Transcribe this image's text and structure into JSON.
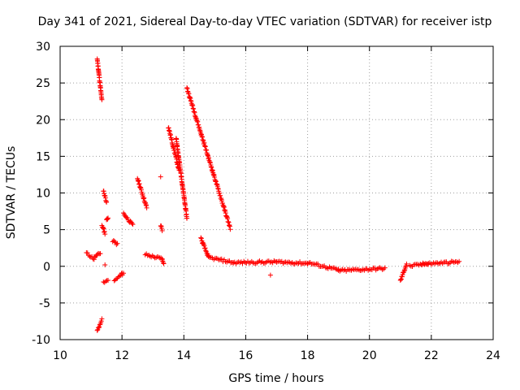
{
  "chart_data": {
    "type": "scatter",
    "title": "Day 341 of 2021, Sidereal Day-to-day VTEC variation (SDTVAR) for receiver istp",
    "xlabel": "GPS time / hours",
    "ylabel": "SDTVAR / TECUs",
    "xlim": [
      10,
      24
    ],
    "ylim": [
      -10,
      30
    ],
    "x_ticks": [
      "10",
      "12",
      "14",
      "16",
      "18",
      "20",
      "22",
      "24"
    ],
    "y_ticks": [
      "-10",
      "-5",
      "0",
      "5",
      "10",
      "15",
      "20",
      "25",
      "30"
    ],
    "grid": true,
    "marker": "+",
    "series_color": "#ff0000",
    "segments": [
      {
        "x": [
          10.85,
          11.1
        ],
        "y": [
          1.8,
          1.0
        ]
      },
      {
        "x": [
          11.1,
          11.3
        ],
        "y": [
          1.2,
          1.8
        ]
      },
      {
        "x": [
          11.2,
          11.35
        ],
        "y": [
          28.3,
          22.6
        ]
      },
      {
        "x": [
          11.2,
          11.35
        ],
        "y": [
          -8.8,
          -7.3
        ]
      },
      {
        "x": [
          11.35,
          11.45
        ],
        "y": [
          5.6,
          4.5
        ]
      },
      {
        "x": [
          11.4,
          11.5
        ],
        "y": [
          10.3,
          8.8
        ]
      },
      {
        "x": [
          11.4,
          11.55
        ],
        "y": [
          -2.3,
          -1.9
        ]
      },
      {
        "x": [
          11.5,
          11.55
        ],
        "y": [
          6.5,
          6.4
        ]
      },
      {
        "x": [
          11.7,
          11.85
        ],
        "y": [
          3.5,
          3.0
        ]
      },
      {
        "x": [
          11.75,
          12.05
        ],
        "y": [
          -2.0,
          -0.9
        ]
      },
      {
        "x": [
          12.05,
          12.35
        ],
        "y": [
          7.2,
          5.6
        ]
      },
      {
        "x": [
          12.5,
          12.8
        ],
        "y": [
          12.0,
          8.0
        ]
      },
      {
        "x": [
          12.75,
          13.3
        ],
        "y": [
          1.6,
          1.0
        ]
      },
      {
        "x": [
          13.25,
          13.3
        ],
        "y": [
          5.6,
          5.0
        ]
      },
      {
        "x": [
          13.3,
          13.35
        ],
        "y": [
          0.8,
          0.5
        ]
      },
      {
        "x": [
          13.5,
          13.85
        ],
        "y": [
          19.0,
          13.0
        ]
      },
      {
        "x": [
          13.75,
          14.1
        ],
        "y": [
          17.5,
          6.5
        ]
      },
      {
        "x": [
          14.1,
          15.5
        ],
        "y": [
          24.3,
          5.2
        ]
      },
      {
        "x": [
          14.55,
          14.8
        ],
        "y": [
          3.8,
          1.2
        ]
      },
      {
        "x": [
          14.8,
          15.6
        ],
        "y": [
          1.2,
          0.5
        ]
      },
      {
        "x": [
          15.6,
          17.0
        ],
        "y": [
          0.5,
          0.6
        ]
      },
      {
        "x": [
          17.0,
          18.0
        ],
        "y": [
          0.6,
          0.4
        ]
      },
      {
        "x": [
          18.0,
          19.0
        ],
        "y": [
          0.5,
          -0.5
        ]
      },
      {
        "x": [
          19.0,
          20.5
        ],
        "y": [
          -0.6,
          -0.3
        ]
      },
      {
        "x": [
          21.0,
          21.2
        ],
        "y": [
          -2.0,
          0.3
        ]
      },
      {
        "x": [
          21.3,
          21.9
        ],
        "y": [
          0.0,
          0.4
        ]
      },
      {
        "x": [
          21.7,
          22.9
        ],
        "y": [
          0.3,
          0.6
        ]
      }
    ],
    "points": [
      {
        "x": 13.25,
        "y": 12.2
      },
      {
        "x": 11.45,
        "y": 0.2
      },
      {
        "x": 16.8,
        "y": -1.2
      },
      {
        "x": 12.0,
        "y": -0.9
      }
    ]
  }
}
